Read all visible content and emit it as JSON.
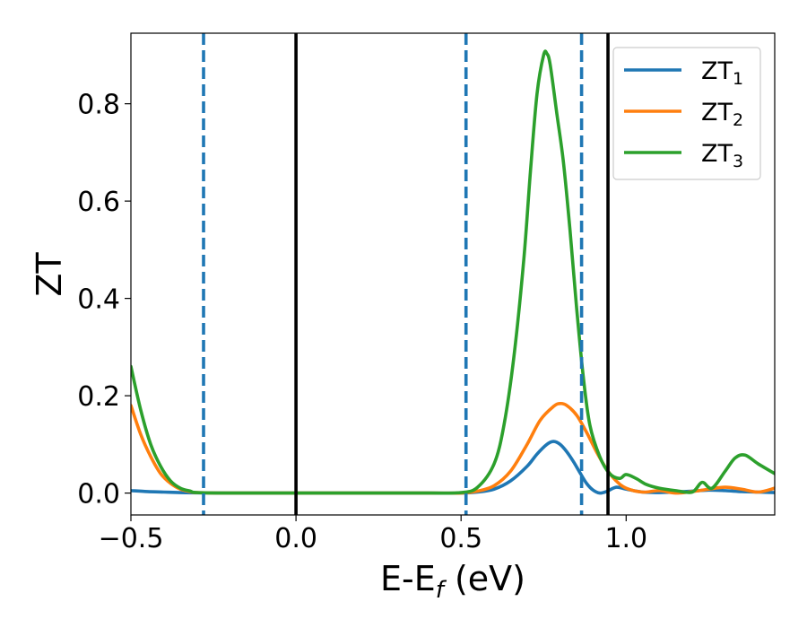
{
  "chart_data": {
    "type": "line",
    "title": "",
    "xlabel": "E-E",
    "xlabel_sub": "f",
    "xlabel_unit": " (eV)",
    "ylabel": "ZT",
    "xlim": [
      -0.5,
      1.45
    ],
    "ylim": [
      -0.045,
      0.945
    ],
    "grid": false,
    "legend_position": "top-right",
    "x_ticks": [
      {
        "value": -0.5,
        "label": "−0.5"
      },
      {
        "value": 0.0,
        "label": "0.0"
      },
      {
        "value": 0.5,
        "label": "0.5"
      },
      {
        "value": 1.0,
        "label": "1.0"
      }
    ],
    "y_ticks": [
      {
        "value": 0.0,
        "label": "0.0"
      },
      {
        "value": 0.2,
        "label": "0.2"
      },
      {
        "value": 0.4,
        "label": "0.4"
      },
      {
        "value": 0.6,
        "label": "0.6"
      },
      {
        "value": 0.8,
        "label": "0.8"
      }
    ],
    "vertical_lines": [
      {
        "x": -0.28,
        "style": "dashed",
        "color": "#1f77b4"
      },
      {
        "x": 0.0,
        "style": "solid",
        "color": "#000000"
      },
      {
        "x": 0.515,
        "style": "dashed",
        "color": "#1f77b4"
      },
      {
        "x": 0.865,
        "style": "dashed",
        "color": "#1f77b4"
      },
      {
        "x": 0.945,
        "style": "solid",
        "color": "#000000"
      }
    ],
    "series": [
      {
        "name": "ZT",
        "sub": "1",
        "color": "#1f77b4",
        "x": [
          -0.5,
          -0.45,
          -0.4,
          -0.35,
          -0.3,
          -0.2,
          0.0,
          0.2,
          0.4,
          0.5,
          0.55,
          0.6,
          0.65,
          0.7,
          0.73,
          0.76,
          0.78,
          0.8,
          0.82,
          0.84,
          0.86,
          0.88,
          0.9,
          0.92,
          0.94,
          0.97,
          1.0,
          1.05,
          1.1,
          1.15,
          1.2,
          1.25,
          1.3,
          1.35,
          1.4,
          1.45
        ],
        "y": [
          0.005,
          0.003,
          0.002,
          0.001,
          0.0005,
          0.0,
          0.0,
          0.0,
          0.0,
          0.0,
          0.002,
          0.008,
          0.025,
          0.055,
          0.08,
          0.1,
          0.106,
          0.1,
          0.085,
          0.065,
          0.042,
          0.02,
          0.006,
          0.0,
          0.003,
          0.012,
          0.008,
          0.002,
          0.001,
          0.002,
          0.004,
          0.006,
          0.005,
          0.003,
          0.002,
          0.001
        ]
      },
      {
        "name": "ZT",
        "sub": "2",
        "color": "#ff7f0e",
        "x": [
          -0.5,
          -0.47,
          -0.44,
          -0.41,
          -0.38,
          -0.35,
          -0.32,
          -0.3,
          -0.2,
          0.0,
          0.2,
          0.4,
          0.5,
          0.55,
          0.6,
          0.65,
          0.7,
          0.74,
          0.78,
          0.8,
          0.82,
          0.85,
          0.88,
          0.91,
          0.94,
          0.97,
          1.0,
          1.05,
          1.1,
          1.15,
          1.2,
          1.25,
          1.3,
          1.35,
          1.4,
          1.45
        ],
        "y": [
          0.18,
          0.12,
          0.075,
          0.04,
          0.02,
          0.008,
          0.003,
          0.001,
          0.0,
          0.0,
          0.0,
          0.0,
          0.0,
          0.004,
          0.015,
          0.045,
          0.1,
          0.15,
          0.178,
          0.184,
          0.18,
          0.16,
          0.125,
          0.085,
          0.05,
          0.025,
          0.01,
          0.002,
          0.005,
          0.0,
          0.003,
          0.008,
          0.012,
          0.008,
          0.002,
          0.01
        ]
      },
      {
        "name": "ZT",
        "sub": "3",
        "color": "#2ca02c",
        "x": [
          -0.5,
          -0.47,
          -0.44,
          -0.41,
          -0.38,
          -0.35,
          -0.32,
          -0.3,
          -0.2,
          0.0,
          0.2,
          0.4,
          0.5,
          0.55,
          0.6,
          0.63,
          0.66,
          0.69,
          0.71,
          0.73,
          0.75,
          0.76,
          0.77,
          0.79,
          0.81,
          0.83,
          0.85,
          0.87,
          0.89,
          0.92,
          0.95,
          0.98,
          1.0,
          1.03,
          1.06,
          1.1,
          1.15,
          1.2,
          1.23,
          1.26,
          1.3,
          1.33,
          1.36,
          1.4,
          1.45
        ],
        "y": [
          0.26,
          0.17,
          0.1,
          0.055,
          0.025,
          0.01,
          0.004,
          0.001,
          0.0,
          0.0,
          0.0,
          0.0,
          0.001,
          0.012,
          0.06,
          0.14,
          0.28,
          0.48,
          0.66,
          0.82,
          0.9,
          0.903,
          0.88,
          0.78,
          0.68,
          0.54,
          0.38,
          0.24,
          0.14,
          0.075,
          0.04,
          0.03,
          0.038,
          0.03,
          0.018,
          0.01,
          0.005,
          0.002,
          0.022,
          0.01,
          0.045,
          0.072,
          0.078,
          0.06,
          0.04
        ]
      }
    ]
  }
}
